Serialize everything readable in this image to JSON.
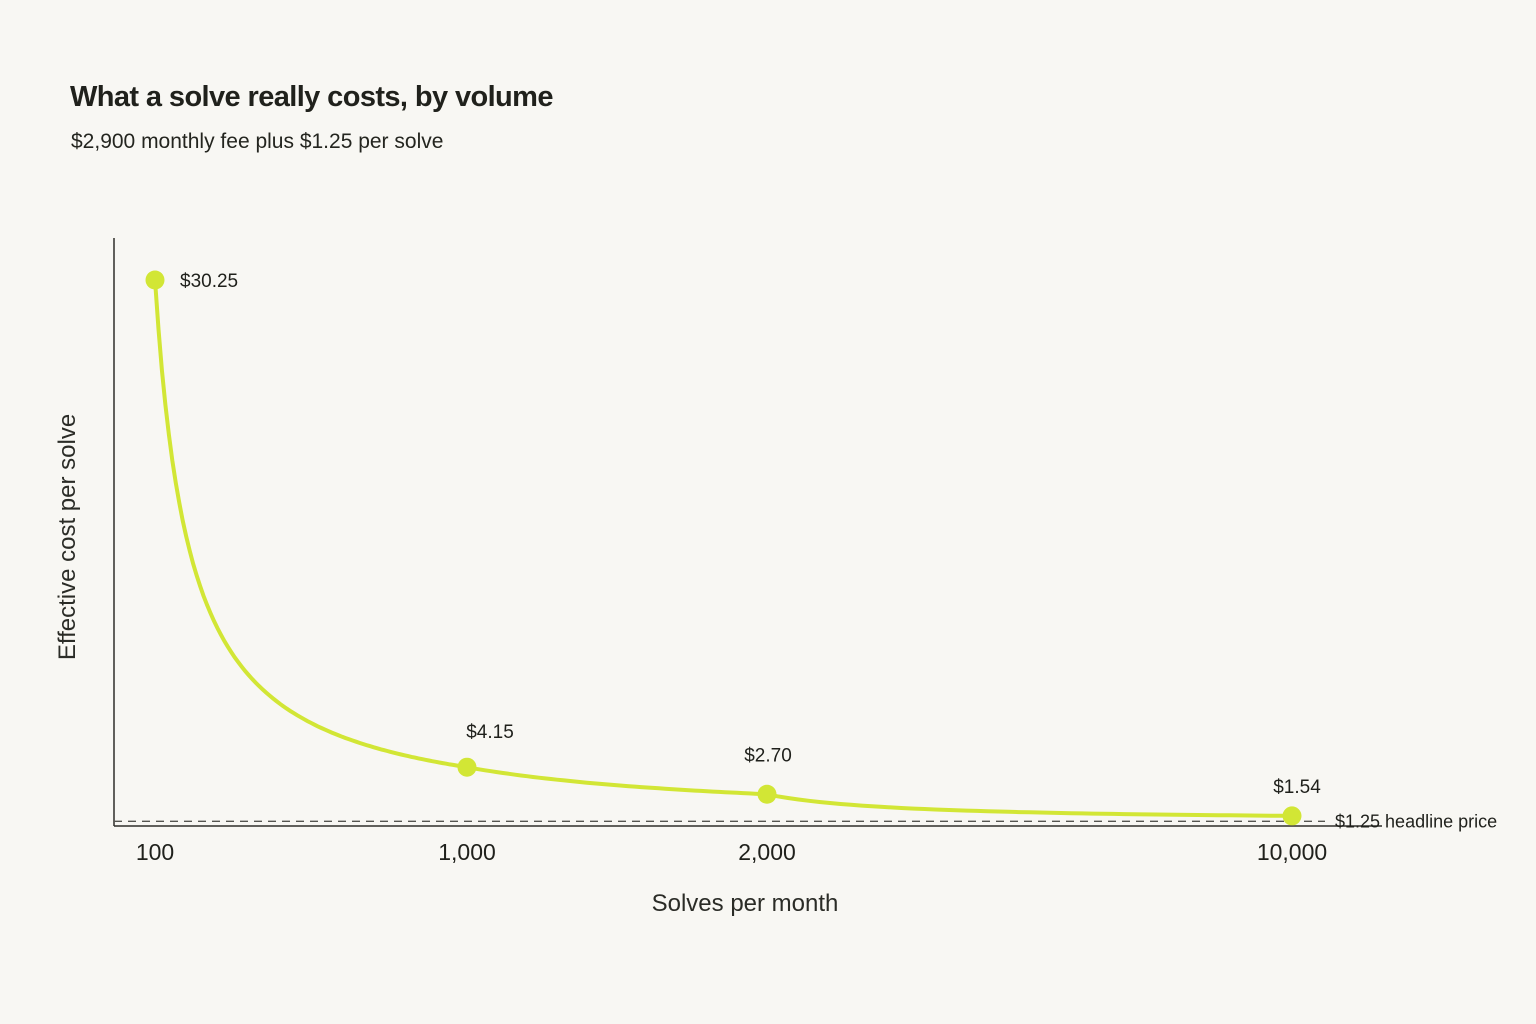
{
  "chart_data": {
    "type": "line",
    "title": "What a solve really costs, by volume",
    "subtitle": "$2,900 monthly fee plus $1.25 per solve",
    "xlabel": "Solves per month",
    "ylabel": "Effective cost per solve",
    "x_tick_labels": [
      "100",
      "1,000",
      "2,000",
      "10,000"
    ],
    "series": [
      {
        "x": [
          100,
          1000,
          2000,
          10000
        ],
        "y": [
          30.25,
          4.15,
          2.7,
          1.54
        ],
        "labels": [
          "$30.25",
          "$4.15",
          "$2.70",
          "$1.54"
        ]
      }
    ],
    "reference_line": {
      "y": 1.25,
      "label": "$1.25 headline price",
      "style": "dashed"
    },
    "grid": false,
    "legend": "none",
    "colors": {
      "line": "#d2e635",
      "marker": "#d2e635",
      "axis": "#2f2f2a",
      "reference": "#555550",
      "background": "#f8f7f3"
    }
  }
}
